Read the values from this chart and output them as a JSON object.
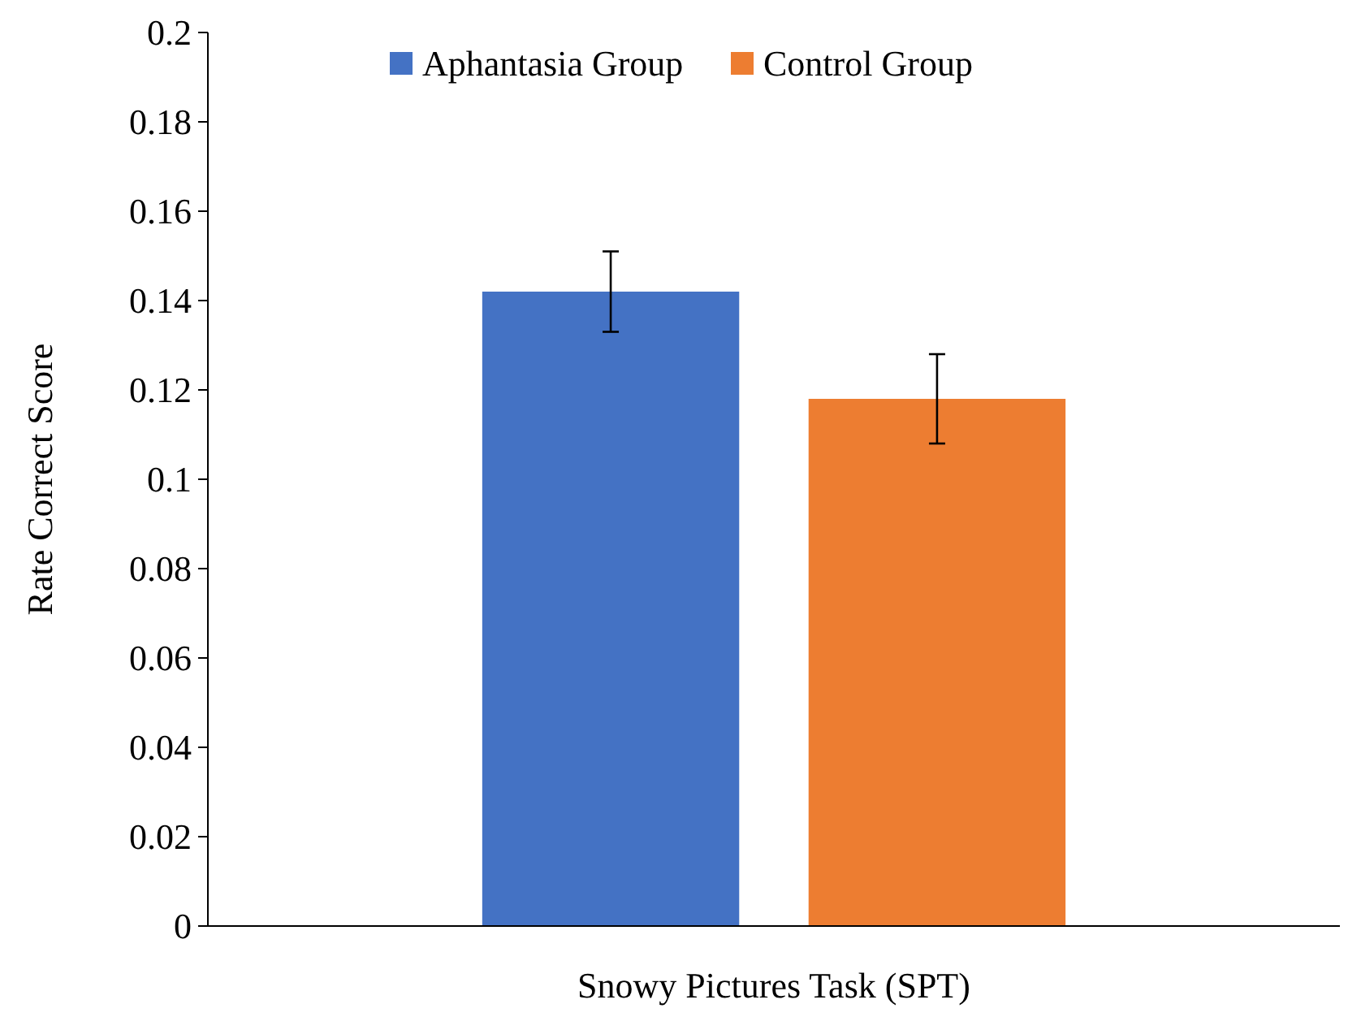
{
  "chart_data": {
    "type": "bar",
    "ylabel": "Rate Correct Score",
    "categories": [
      "Snowy Pictures Task (SPT)"
    ],
    "series": [
      {
        "name": "Aphantasia Group",
        "color": "#4472c4",
        "values": [
          0.142
        ],
        "errors": [
          0.009
        ]
      },
      {
        "name": "Control Group",
        "color": "#ed7d31",
        "values": [
          0.118
        ],
        "errors": [
          0.01
        ]
      }
    ],
    "ylim": [
      0,
      0.2
    ],
    "yticks": [
      0,
      0.02,
      0.04,
      0.06,
      0.08,
      0.1,
      0.12,
      0.14,
      0.16,
      0.18,
      0.2
    ],
    "grid": false,
    "legend": "top"
  }
}
